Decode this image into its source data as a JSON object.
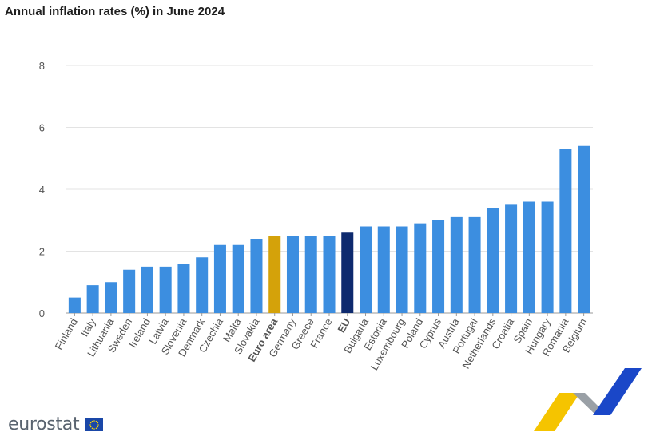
{
  "chart_data": {
    "type": "bar",
    "title": "Annual inflation rates (%) in June 2024",
    "categories": [
      "Finland",
      "Italy",
      "Lithuania",
      "Sweden",
      "Ireland",
      "Latvia",
      "Slovenia",
      "Denmark",
      "Czechia",
      "Malta",
      "Slovakia",
      "Euro area",
      "Germany",
      "Greece",
      "France",
      "EU",
      "Bulgaria",
      "Estonia",
      "Luxembourg",
      "Poland",
      "Cyprus",
      "Austria",
      "Portugal",
      "Netherlands",
      "Croatia",
      "Spain",
      "Hungary",
      "Romania",
      "Belgium"
    ],
    "values": [
      0.5,
      0.9,
      1.0,
      1.4,
      1.5,
      1.5,
      1.6,
      1.8,
      2.2,
      2.2,
      2.4,
      2.5,
      2.5,
      2.5,
      2.5,
      2.6,
      2.8,
      2.8,
      2.8,
      2.9,
      3.0,
      3.1,
      3.1,
      3.4,
      3.5,
      3.6,
      3.6,
      5.3,
      5.4
    ],
    "highlight": {
      "Euro area": "#d4a20a",
      "EU": "#0e2a6e"
    },
    "bold_categories": [
      "Euro area",
      "EU"
    ],
    "bar_color": "#3c8ee0",
    "yticks": [
      0,
      2,
      4,
      6,
      8
    ],
    "ylim": [
      0,
      8
    ],
    "xlabel": "",
    "ylabel": "",
    "grid": true
  },
  "footer": {
    "logo_text": "eurostat",
    "flag_color": "#1a47a8",
    "star_color": "#ffd500"
  }
}
